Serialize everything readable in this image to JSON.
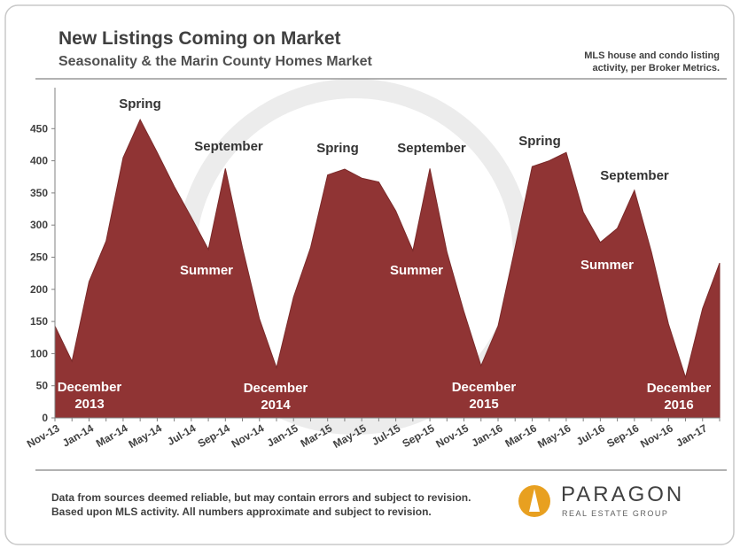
{
  "chart_data": {
    "type": "area",
    "title": "New Listings Coming on Market",
    "subtitle": "Seasonality & the Marin County Homes Market",
    "note": [
      "MLS house and condo listing",
      "activity, per Broker Metrics."
    ],
    "categories": [
      "Nov-13",
      null,
      "Jan-14",
      null,
      "Mar-14",
      null,
      "May-14",
      null,
      "Jul-14",
      null,
      "Sep-14",
      null,
      "Nov-14",
      null,
      "Jan-15",
      null,
      "Mar-15",
      null,
      "May-15",
      null,
      "Jul-15",
      null,
      "Sep-15",
      null,
      "Nov-15",
      null,
      "Jan-16",
      null,
      "Mar-16",
      null,
      "May-16",
      null,
      "Jul-16",
      null,
      "Sep-16",
      null,
      "Nov-16",
      null,
      "Jan-17",
      null
    ],
    "values": [
      143,
      88,
      212,
      275,
      405,
      464,
      413,
      360,
      312,
      262,
      388,
      265,
      154,
      78,
      188,
      265,
      378,
      387,
      373,
      367,
      322,
      260,
      388,
      258,
      165,
      81,
      143,
      265,
      391,
      400,
      413,
      320,
      273,
      295,
      354,
      258,
      146,
      63,
      170,
      241
    ],
    "color": "#903434",
    "ylim": [
      0,
      500
    ],
    "yticks": [
      0,
      50,
      100,
      150,
      200,
      250,
      300,
      350,
      400,
      450
    ],
    "annotations": [
      {
        "lines": [
          "Spring"
        ]
      },
      {
        "lines": [
          "September"
        ]
      },
      {
        "lines": [
          "Summer"
        ]
      },
      {
        "lines": [
          "December",
          "2013"
        ]
      },
      {
        "lines": [
          "December",
          "2014"
        ]
      },
      {
        "lines": [
          "Spring"
        ]
      },
      {
        "lines": [
          "September"
        ]
      },
      {
        "lines": [
          "Summer"
        ]
      },
      {
        "lines": [
          "December",
          "2015"
        ]
      },
      {
        "lines": [
          "Spring"
        ]
      },
      {
        "lines": [
          "September"
        ]
      },
      {
        "lines": [
          "Summer"
        ]
      },
      {
        "lines": [
          "December",
          "2016"
        ]
      }
    ]
  },
  "footer": [
    "Data from sources deemed reliable, but may contain errors and subject to revision.",
    "Based upon MLS activity. All numbers approximate and subject to revision."
  ],
  "logo": {
    "name": "PARAGON",
    "tagline": "REAL ESTATE GROUP"
  }
}
